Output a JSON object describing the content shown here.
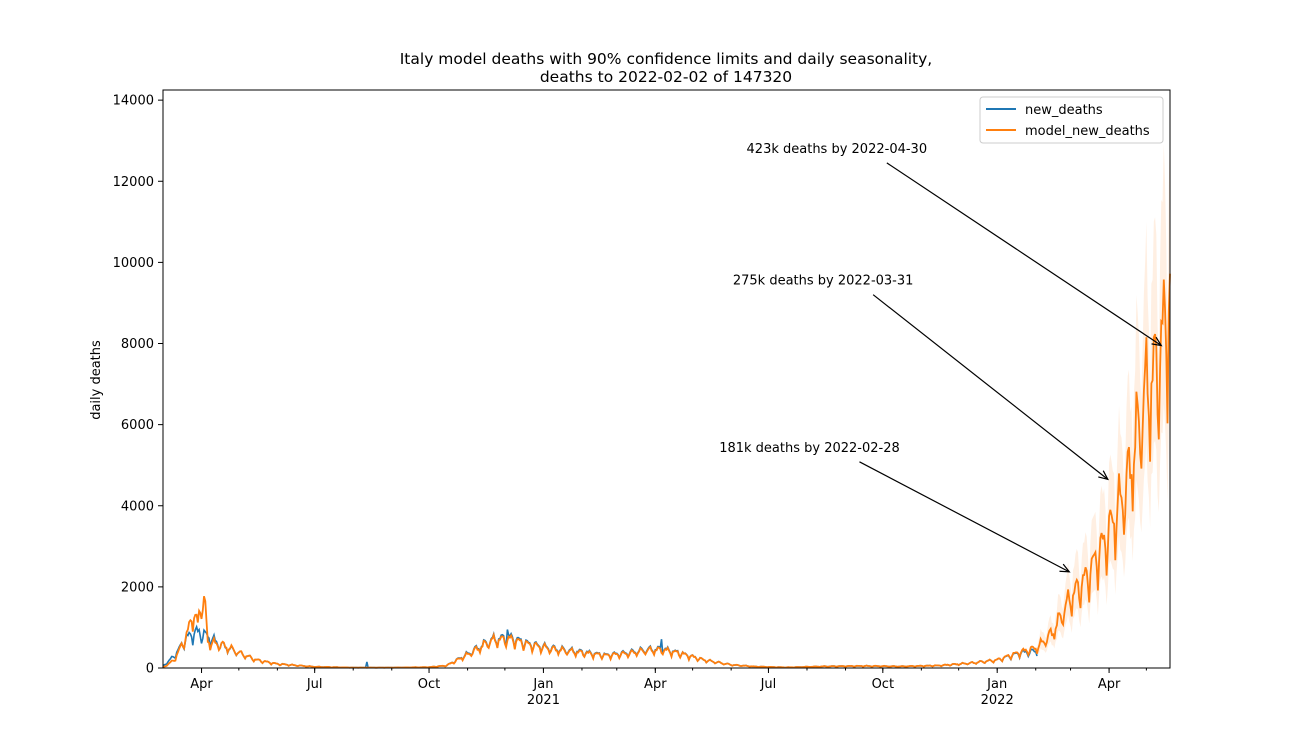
{
  "chart_data": {
    "type": "line",
    "title_lines": [
      "Italy model deaths with 90% confidence limits and daily seasonality,",
      "deaths to 2022-02-02 of 147320"
    ],
    "xlabel": "",
    "ylabel": "daily deaths",
    "xlim": [
      "2020-03-01",
      "2022-05-20"
    ],
    "ylim": [
      0,
      14250
    ],
    "yticks": [
      0,
      2000,
      4000,
      6000,
      8000,
      10000,
      12000,
      14000
    ],
    "xticks": [
      {
        "date": "2020-04-01",
        "label": "Apr",
        "year": ""
      },
      {
        "date": "2020-07-01",
        "label": "Jul",
        "year": ""
      },
      {
        "date": "2020-10-01",
        "label": "Oct",
        "year": ""
      },
      {
        "date": "2021-01-01",
        "label": "Jan",
        "year": "2021"
      },
      {
        "date": "2021-04-01",
        "label": "Apr",
        "year": ""
      },
      {
        "date": "2021-07-01",
        "label": "Jul",
        "year": ""
      },
      {
        "date": "2021-10-01",
        "label": "Oct",
        "year": ""
      },
      {
        "date": "2022-01-01",
        "label": "Jan",
        "year": "2022"
      },
      {
        "date": "2022-04-01",
        "label": "Apr",
        "year": ""
      }
    ],
    "legend_position": "upper right",
    "series": [
      {
        "name": "new_deaths",
        "color": "#1f77b4",
        "end": "2022-02-02",
        "anchors": [
          [
            "2020-03-01",
            50
          ],
          [
            "2020-03-10",
            300
          ],
          [
            "2020-03-20",
            750
          ],
          [
            "2020-03-28",
            900
          ],
          [
            "2020-04-05",
            800
          ],
          [
            "2020-04-15",
            600
          ],
          [
            "2020-05-01",
            380
          ],
          [
            "2020-05-15",
            200
          ],
          [
            "2020-06-01",
            100
          ],
          [
            "2020-07-01",
            30
          ],
          [
            "2020-08-01",
            10
          ],
          [
            "2020-09-01",
            10
          ],
          [
            "2020-10-01",
            20
          ],
          [
            "2020-10-15",
            60
          ],
          [
            "2020-11-01",
            350
          ],
          [
            "2020-11-20",
            700
          ],
          [
            "2020-12-05",
            760
          ],
          [
            "2020-12-20",
            600
          ],
          [
            "2021-01-10",
            480
          ],
          [
            "2021-02-01",
            400
          ],
          [
            "2021-02-20",
            320
          ],
          [
            "2021-03-10",
            380
          ],
          [
            "2021-03-25",
            460
          ],
          [
            "2021-04-07",
            470
          ],
          [
            "2021-04-20",
            380
          ],
          [
            "2021-05-10",
            200
          ],
          [
            "2021-06-01",
            80
          ],
          [
            "2021-06-20",
            35
          ],
          [
            "2021-07-15",
            15
          ],
          [
            "2021-08-15",
            40
          ],
          [
            "2021-09-15",
            50
          ],
          [
            "2021-10-15",
            40
          ],
          [
            "2021-11-15",
            60
          ],
          [
            "2021-12-10",
            120
          ],
          [
            "2022-01-01",
            200
          ],
          [
            "2022-01-20",
            380
          ],
          [
            "2022-02-02",
            420
          ]
        ],
        "spikes": [
          [
            "2020-08-12",
            150
          ],
          [
            "2020-12-03",
            950
          ],
          [
            "2021-04-06",
            710
          ]
        ]
      },
      {
        "name": "model_new_deaths",
        "color": "#ff7f0e",
        "end": "2022-05-20",
        "anchors": [
          [
            "2020-03-01",
            10
          ],
          [
            "2020-03-10",
            200
          ],
          [
            "2020-03-20",
            800
          ],
          [
            "2020-03-25",
            1350
          ],
          [
            "2020-03-29",
            1100
          ],
          [
            "2020-04-01",
            1700
          ],
          [
            "2020-04-04",
            1500
          ],
          [
            "2020-04-06",
            650
          ],
          [
            "2020-04-20",
            550
          ],
          [
            "2020-05-01",
            380
          ],
          [
            "2020-05-15",
            200
          ],
          [
            "2020-06-01",
            100
          ],
          [
            "2020-07-01",
            30
          ],
          [
            "2020-08-01",
            10
          ],
          [
            "2020-09-01",
            10
          ],
          [
            "2020-10-01",
            20
          ],
          [
            "2020-10-15",
            60
          ],
          [
            "2020-11-01",
            330
          ],
          [
            "2020-11-20",
            680
          ],
          [
            "2020-12-05",
            720
          ],
          [
            "2020-12-20",
            580
          ],
          [
            "2021-01-10",
            460
          ],
          [
            "2021-02-01",
            380
          ],
          [
            "2021-02-20",
            310
          ],
          [
            "2021-03-10",
            360
          ],
          [
            "2021-03-25",
            440
          ],
          [
            "2021-04-07",
            450
          ],
          [
            "2021-04-20",
            370
          ],
          [
            "2021-05-10",
            200
          ],
          [
            "2021-06-01",
            80
          ],
          [
            "2021-06-20",
            35
          ],
          [
            "2021-07-15",
            15
          ],
          [
            "2021-08-15",
            40
          ],
          [
            "2021-09-15",
            50
          ],
          [
            "2021-10-15",
            40
          ],
          [
            "2021-11-15",
            60
          ],
          [
            "2021-12-10",
            120
          ],
          [
            "2022-01-01",
            200
          ],
          [
            "2022-01-20",
            400
          ],
          [
            "2022-02-02",
            500
          ],
          [
            "2022-02-15",
            900
          ],
          [
            "2022-02-28",
            1700
          ],
          [
            "2022-03-15",
            2300
          ],
          [
            "2022-03-31",
            3300
          ],
          [
            "2022-04-15",
            4500
          ],
          [
            "2022-04-30",
            6800
          ],
          [
            "2022-05-10",
            7500
          ],
          [
            "2022-05-20",
            9200
          ]
        ],
        "band_start": "2022-02-02",
        "band_color": "#ff7f0e"
      }
    ],
    "annotations": [
      {
        "text": "423k deaths by 2022-04-30",
        "x": "2022-05-13",
        "y": 7950,
        "text_anchor_date": "2021-08-25",
        "text_value": 12700
      },
      {
        "text": "275k deaths by 2022-03-31",
        "x": "2022-03-31",
        "y": 4650,
        "text_anchor_date": "2021-08-14",
        "text_value": 9450
      },
      {
        "text": "181k deaths by 2022-02-28",
        "x": "2022-02-28",
        "y": 2370,
        "text_anchor_date": "2021-08-03",
        "text_value": 5330
      }
    ]
  }
}
